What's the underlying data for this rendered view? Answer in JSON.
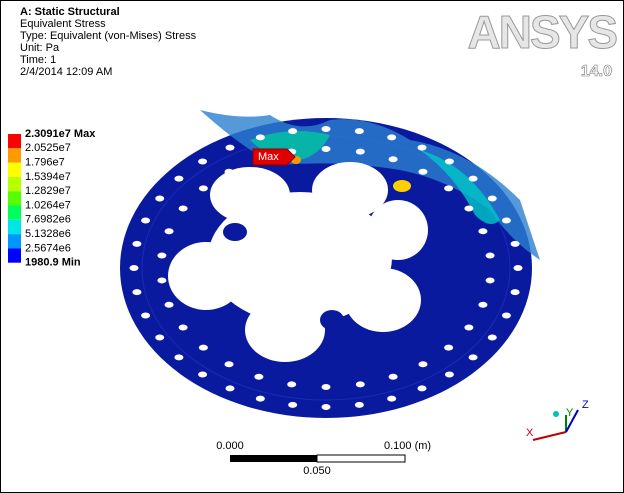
{
  "header": {
    "lines": [
      "A: Static Structural",
      "Equivalent Stress",
      "Type: Equivalent (von-Mises) Stress",
      "Unit: Pa",
      "Time: 1",
      "2/4/2014 12:09 AM"
    ]
  },
  "legend": {
    "labels": [
      "2.3091e7 Max",
      "2.0525e7",
      "1.796e7",
      "1.5394e7",
      "1.2829e7",
      "1.0264e7",
      "7.6982e6",
      "5.1328e6",
      "2.5674e6",
      "1980.9 Min"
    ],
    "band_colors": [
      "#ff0000",
      "#ff9a00",
      "#ffff00",
      "#b8ff00",
      "#55ff00",
      "#00ff5a",
      "#00e5e5",
      "#0096ff",
      "#0000ff"
    ]
  },
  "logo": {
    "name": "ANSYS",
    "version": "14.0"
  },
  "probe": {
    "label": "Max"
  },
  "scale_bar": {
    "left": "0.000",
    "right": "0.100 (m)",
    "middle": "0.050"
  },
  "triad": {
    "x": "X",
    "y": "Y",
    "z": "Z"
  }
}
